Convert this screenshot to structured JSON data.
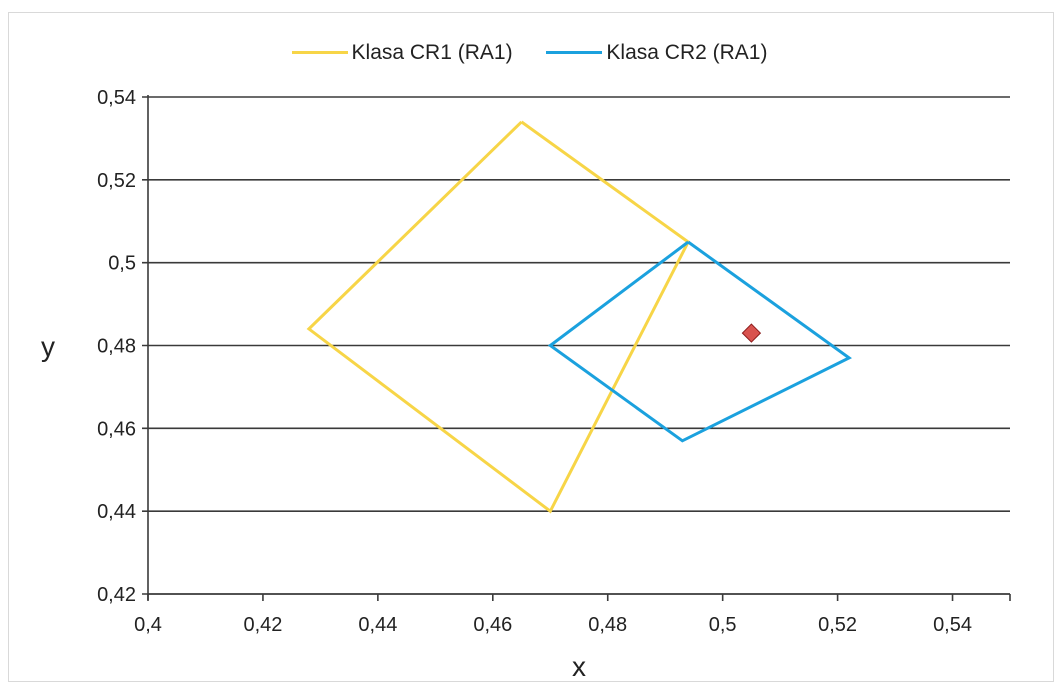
{
  "chart_data": {
    "type": "line",
    "xlabel": "x",
    "ylabel": "y",
    "xlim": [
      0.4,
      0.55
    ],
    "ylim": [
      0.42,
      0.54
    ],
    "x_ticks": [
      "0,4",
      "0,42",
      "0,44",
      "0,46",
      "0,48",
      "0,5",
      "0,52",
      "0,54"
    ],
    "y_ticks": [
      "0,54",
      "0,52",
      "0,5",
      "0,48",
      "0,46",
      "0,44",
      "0,42"
    ],
    "grid": "horizontal",
    "legend_position": "top",
    "series": [
      {
        "name": "Klasa CR1 (RA1)",
        "color": "#f7d547",
        "points": [
          [
            0.465,
            0.534
          ],
          [
            0.494,
            0.505
          ],
          [
            0.47,
            0.44
          ],
          [
            0.428,
            0.484
          ],
          [
            0.465,
            0.534
          ]
        ]
      },
      {
        "name": "Klasa CR2 (RA1)",
        "color": "#1ba1de",
        "points": [
          [
            0.494,
            0.505
          ],
          [
            0.522,
            0.477
          ],
          [
            0.493,
            0.457
          ],
          [
            0.47,
            0.48
          ],
          [
            0.494,
            0.505
          ]
        ]
      }
    ],
    "markers": [
      {
        "x": 0.505,
        "y": 0.483,
        "color": "#d9534f",
        "shape": "diamond"
      }
    ]
  }
}
